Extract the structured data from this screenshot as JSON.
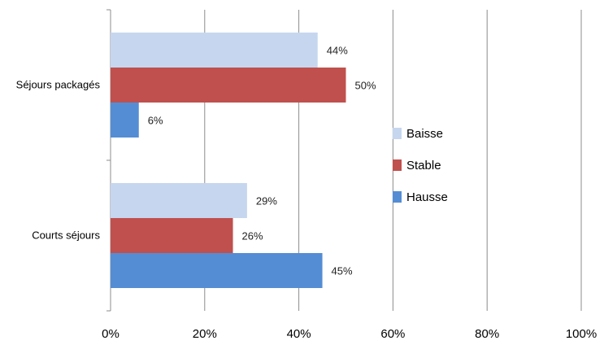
{
  "chart_data": {
    "type": "bar",
    "orientation": "horizontal",
    "categories": [
      "Séjours packagés",
      "Courts séjours"
    ],
    "series": [
      {
        "name": "Baisse",
        "values": [
          44,
          29
        ],
        "color": "#c6d6ef"
      },
      {
        "name": "Stable",
        "values": [
          50,
          26
        ],
        "color": "#c0504d"
      },
      {
        "name": "Hausse",
        "values": [
          6,
          45
        ],
        "color": "#548dd4"
      }
    ],
    "value_labels": [
      [
        "44%",
        "29%"
      ],
      [
        "50%",
        "26%"
      ],
      [
        "6%",
        "45%"
      ]
    ],
    "x_ticks": [
      "0%",
      "20%",
      "40%",
      "60%",
      "80%",
      "100%"
    ],
    "xlim": [
      0,
      100
    ],
    "grid": true,
    "legend": {
      "position": "right",
      "items": [
        "Baisse",
        "Stable",
        "Hausse"
      ]
    }
  }
}
